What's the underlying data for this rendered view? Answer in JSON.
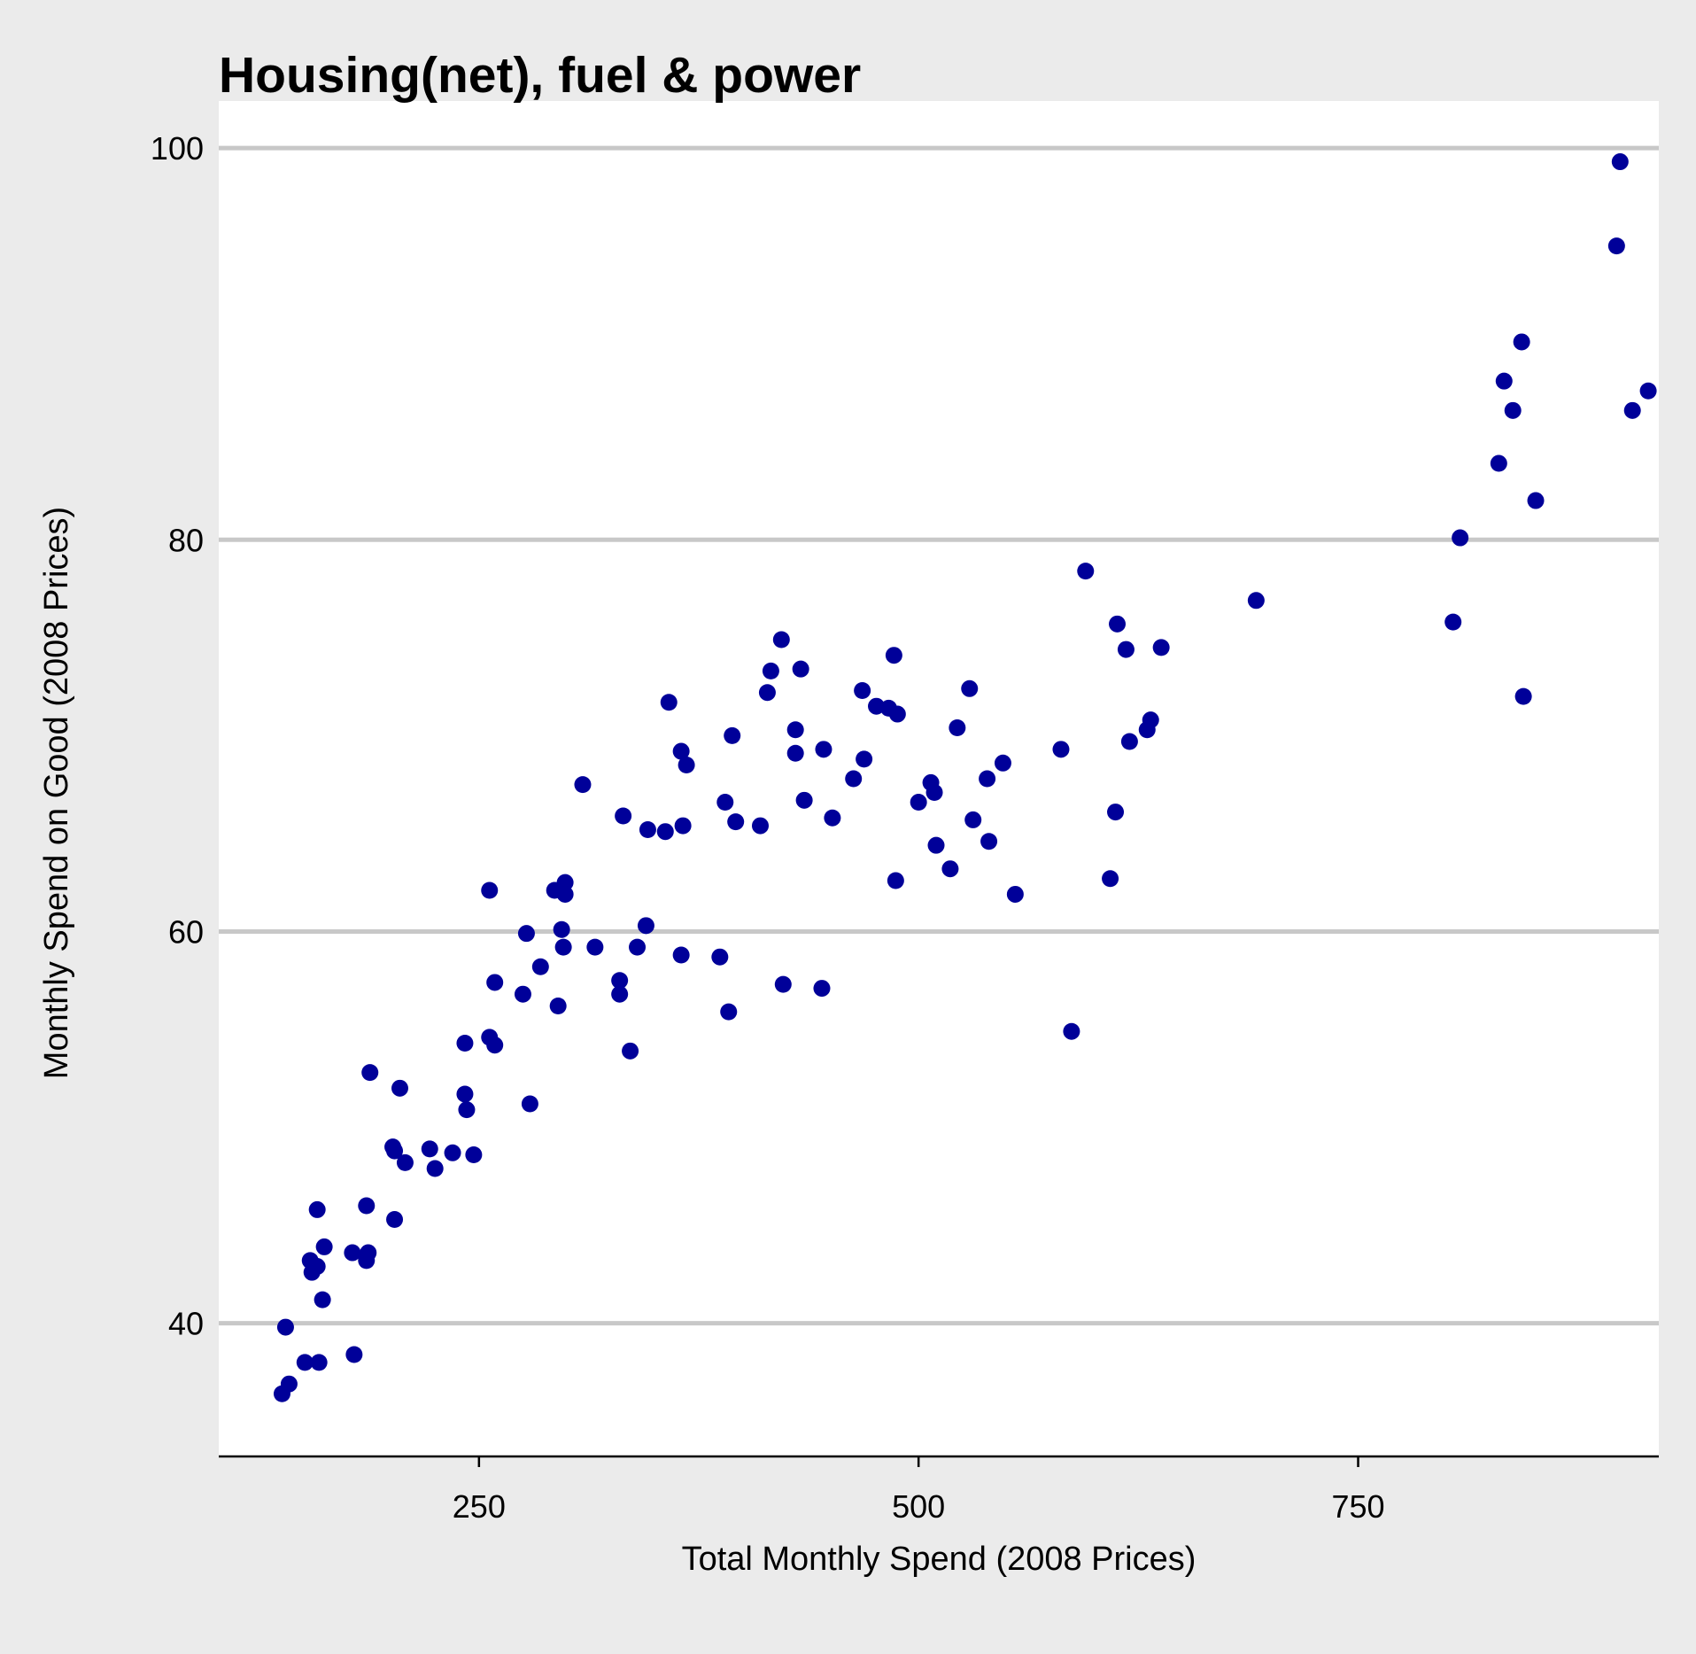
{
  "chart_data": {
    "type": "scatter",
    "title": "Housing(net), fuel & power",
    "xlabel": "Total Monthly Spend (2008 Prices)",
    "ylabel": "Monthly Spend on Good (2008 Prices)",
    "xlim": [
      102,
      921
    ],
    "ylim": [
      33.2,
      102.4
    ],
    "xticks": [
      250,
      500,
      750
    ],
    "yticks": [
      40,
      60,
      80,
      100
    ],
    "grid": "horizontal major lines",
    "colors": {
      "point": "#000099",
      "panel": "#ffffff",
      "background": "#ebebeb",
      "grid": "#c8c8c8",
      "axis": "#000000"
    },
    "series": [
      {
        "points": [
          [
            138,
            36.4
          ],
          [
            142,
            36.9
          ],
          [
            140,
            39.8
          ],
          [
            151,
            38.0
          ],
          [
            159,
            38.0
          ],
          [
            179,
            38.4
          ],
          [
            154,
            43.2
          ],
          [
            155,
            42.6
          ],
          [
            158,
            42.9
          ],
          [
            162,
            43.9
          ],
          [
            161,
            41.2
          ],
          [
            158,
            45.8
          ],
          [
            178,
            43.6
          ],
          [
            186,
            43.2
          ],
          [
            187,
            43.6
          ],
          [
            186,
            46.0
          ],
          [
            202,
            45.3
          ],
          [
            188,
            52.8
          ],
          [
            205,
            52.0
          ],
          [
            201,
            49.0
          ],
          [
            202,
            48.8
          ],
          [
            208,
            48.2
          ],
          [
            222,
            48.9
          ],
          [
            225,
            47.9
          ],
          [
            235,
            48.7
          ],
          [
            247,
            48.6
          ],
          [
            242,
            51.7
          ],
          [
            243,
            50.9
          ],
          [
            242,
            54.3
          ],
          [
            256,
            54.6
          ],
          [
            259,
            54.2
          ],
          [
            256,
            62.1
          ],
          [
            259,
            57.4
          ],
          [
            275,
            56.8
          ],
          [
            277,
            59.9
          ],
          [
            279,
            51.2
          ],
          [
            285,
            58.2
          ],
          [
            293,
            62.1
          ],
          [
            295,
            56.2
          ],
          [
            297,
            60.1
          ],
          [
            298,
            59.2
          ],
          [
            299,
            62.5
          ],
          [
            299,
            61.9
          ],
          [
            309,
            67.5
          ],
          [
            316,
            59.2
          ],
          [
            330,
            57.5
          ],
          [
            330,
            56.8
          ],
          [
            332,
            65.9
          ],
          [
            336,
            53.9
          ],
          [
            340,
            59.2
          ],
          [
            345,
            60.3
          ],
          [
            346,
            65.2
          ],
          [
            356,
            65.1
          ],
          [
            358,
            71.7
          ],
          [
            365,
            58.8
          ],
          [
            365,
            69.2
          ],
          [
            366,
            65.4
          ],
          [
            368,
            68.5
          ],
          [
            387,
            58.7
          ],
          [
            390,
            66.6
          ],
          [
            392,
            55.9
          ],
          [
            394,
            70.0
          ],
          [
            396,
            65.6
          ],
          [
            410,
            65.4
          ],
          [
            414,
            72.2
          ],
          [
            416,
            73.3
          ],
          [
            422,
            74.9
          ],
          [
            423,
            57.3
          ],
          [
            430,
            70.3
          ],
          [
            430,
            69.1
          ],
          [
            433,
            73.4
          ],
          [
            435,
            66.7
          ],
          [
            445,
            57.1
          ],
          [
            446,
            69.3
          ],
          [
            451,
            65.8
          ],
          [
            463,
            67.8
          ],
          [
            468,
            72.3
          ],
          [
            469,
            68.8
          ],
          [
            476,
            71.5
          ],
          [
            483,
            71.4
          ],
          [
            486,
            74.1
          ],
          [
            488,
            71.1
          ],
          [
            487,
            62.6
          ],
          [
            500,
            66.6
          ],
          [
            507,
            67.6
          ],
          [
            509,
            67.1
          ],
          [
            510,
            64.4
          ],
          [
            518,
            63.2
          ],
          [
            522,
            70.4
          ],
          [
            529,
            72.4
          ],
          [
            531,
            65.7
          ],
          [
            539,
            67.8
          ],
          [
            540,
            64.6
          ],
          [
            548,
            68.6
          ],
          [
            555,
            61.9
          ],
          [
            581,
            69.3
          ],
          [
            587,
            54.9
          ],
          [
            595,
            78.4
          ],
          [
            609,
            62.7
          ],
          [
            612,
            66.1
          ],
          [
            613,
            75.7
          ],
          [
            618,
            74.4
          ],
          [
            620,
            69.7
          ],
          [
            630,
            70.3
          ],
          [
            632,
            70.8
          ],
          [
            638,
            74.5
          ],
          [
            692,
            76.9
          ],
          [
            804,
            75.8
          ],
          [
            808,
            80.1
          ],
          [
            830,
            83.9
          ],
          [
            833,
            88.1
          ],
          [
            838,
            86.6
          ],
          [
            843,
            90.1
          ],
          [
            844,
            72.0
          ],
          [
            851,
            82.0
          ],
          [
            897,
            95.0
          ],
          [
            899,
            99.3
          ],
          [
            906,
            86.6
          ],
          [
            915,
            87.6
          ]
        ]
      }
    ]
  }
}
